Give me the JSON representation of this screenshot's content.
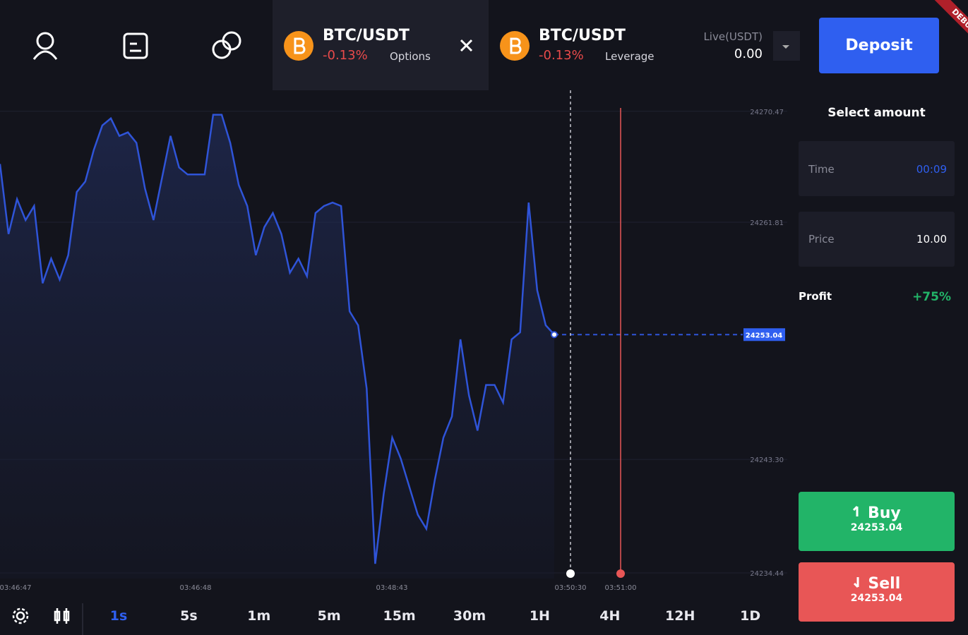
{
  "nav": {
    "tabs": [
      {
        "pair": "BTC/USDT",
        "change": "-0.13%",
        "mode": "Options"
      },
      {
        "pair": "BTC/USDT",
        "change": "-0.13%",
        "mode": "Leverage"
      }
    ]
  },
  "account": {
    "label": "Live(USDT)",
    "balance": "0.00",
    "deposit": "Deposit"
  },
  "debug": "DEBUG",
  "chart": {
    "type": "line",
    "color": "#2f54d8",
    "values": [
      24266.36,
      24260.89,
      24263.62,
      24261.98,
      24263.08,
      24257.05,
      24258.97,
      24257.33,
      24259.24,
      24264.17,
      24264.99,
      24267.46,
      24269.37,
      24269.92,
      24268.55,
      24268.83,
      24268.01,
      24264.45,
      24261.98,
      24265.27,
      24268.55,
      24266.09,
      24265.54,
      24265.54,
      24265.54,
      24270.2,
      24270.2,
      24268.01,
      24264.72,
      24263.08,
      24259.24,
      24261.43,
      24262.53,
      24260.89,
      24257.87,
      24258.97,
      24257.6,
      24262.53,
      24263.08,
      24263.35,
      24263.08,
      24254.86,
      24253.77,
      24248.84,
      24235.15,
      24240.62,
      24245.0,
      24243.36,
      24241.17,
      24238.98,
      24237.88,
      24241.72,
      24245.0,
      24246.65,
      24252.67,
      24248.29,
      24245.55,
      24249.11,
      24249.11,
      24247.74,
      24252.67,
      24253.22,
      24263.35,
      24256.51,
      24253.77,
      24253.04
    ],
    "ylim": [
      24234,
      24272
    ],
    "yticks": [
      24270.47,
      24261.81,
      {
        "value": 24243.3,
        "label": "24243.30"
      },
      24234.44
    ],
    "current_price": 24253.04,
    "x_labels": [
      "03:46:47",
      "03:46:48",
      "03:48:43",
      "03:50:30",
      "03:51:00"
    ],
    "grid": true
  },
  "panel": {
    "title": "Select amount",
    "time_label": "Time",
    "time_value": "00:09",
    "price_label": "Price",
    "price_value": "10.00",
    "profit_label": "Profit",
    "profit_value": "+75%",
    "buy": {
      "label": "Buy",
      "price": "24253.04"
    },
    "sell": {
      "label": "Sell",
      "price": "24253.04"
    }
  },
  "timeframes": [
    "1s",
    "5s",
    "1m",
    "5m",
    "15m",
    "30m",
    "1H",
    "4H",
    "12H",
    "1D"
  ],
  "active_timeframe": "1s"
}
